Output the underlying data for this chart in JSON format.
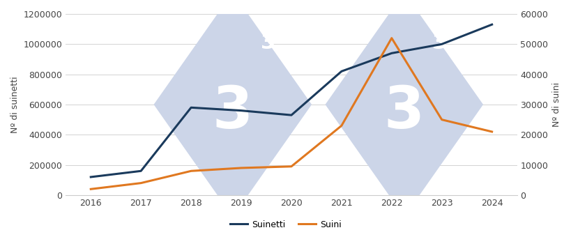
{
  "years": [
    2016,
    2017,
    2018,
    2019,
    2020,
    2021,
    2022,
    2023,
    2024
  ],
  "suinetti": [
    120000,
    160000,
    580000,
    560000,
    530000,
    820000,
    940000,
    1000000,
    1130000
  ],
  "suini": [
    2000,
    4000,
    8000,
    9000,
    9500,
    23000,
    52000,
    25000,
    21000
  ],
  "color_suinetti": "#1a3a5c",
  "color_suini": "#e07820",
  "ylabel_left": "Nº di suinetti",
  "ylabel_right": "Nº di suini",
  "ylim_left": [
    0,
    1200000
  ],
  "ylim_right": [
    0,
    60000
  ],
  "yticks_left": [
    0,
    200000,
    400000,
    600000,
    800000,
    1000000,
    1200000
  ],
  "yticks_right": [
    0,
    10000,
    20000,
    30000,
    40000,
    50000,
    60000
  ],
  "legend_suinetti": "Suinetti",
  "legend_suini": "Suini",
  "background_color": "#ffffff",
  "watermark_color": "#ccd5e8",
  "grid_color": "#cccccc",
  "linewidth": 2.2,
  "figsize": [
    8.2,
    3.4
  ],
  "dpi": 100
}
